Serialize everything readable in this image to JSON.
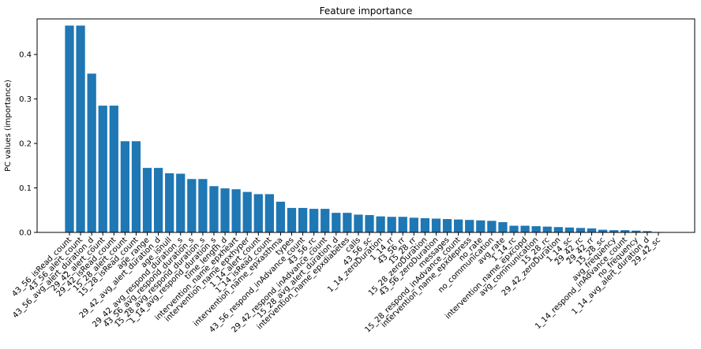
{
  "chart_data": {
    "type": "bar",
    "title": "Feature importance",
    "xlabel": "",
    "ylabel": "PC values (importance)",
    "ylim": [
      0,
      0.48
    ],
    "yticks": [
      0.0,
      0.1,
      0.2,
      0.3,
      0.4
    ],
    "ytick_labels": [
      "0.0",
      "0.1",
      "0.2",
      "0.3",
      "0.4"
    ],
    "grid": false,
    "bar_color": "#1f77b4",
    "categories": [
      "43_56_isRead_count",
      "43_56_alert_count",
      "43_56_avg_alert_duration_d",
      "29_42_alert_count",
      "29_42_isRead_count",
      "15_28_alert_count",
      "15_28_isRead_count",
      "age_range",
      "29_42_avg_alert_duration_d",
      "age_isnull",
      "29_42_avg_respond_duration_s",
      "43_56_avg_respond_duration_s",
      "15_28_avg_respond_duration_s",
      "1_14_avg_respond_duration_s",
      "time_length_d",
      "intervention_name_epxheart",
      "intervention_name_epxhyper",
      "1_14_alert_count",
      "1_14_isRead_count",
      "intervention_name_epxasthma",
      "types",
      "43_56_respond_inAdvance_count",
      "43_56_rc",
      "29_42_respond_inAdvance_count",
      "15_28_avg_alert_duration_d",
      "intervention_name_epxdiabetes",
      "calls",
      "43_56_sc",
      "1_14_zeroDuration",
      "1_14_rr",
      "43_56_rr",
      "15_28_rr",
      "15_28_zeroDuration",
      "43_56_zeroDuration",
      "messages",
      "15_28_respond_inAdvance_count",
      "intervention_name_epxdepress",
      "no_rate",
      "no_communication",
      "avg_rate",
      "1_14_rc",
      "intervention_name_epxcopd",
      "avg_communication",
      "15_28_rc",
      "29_42_zeroDuration",
      "1_14_sc",
      "29_42_rc",
      "29_42_rr",
      "15_28_sc",
      "avg_frequency",
      "1_14_respond_inAdvance_count",
      "no_frequency",
      "1_14_avg_alert_duration_d",
      "29_42_sc"
    ],
    "values": [
      0.465,
      0.465,
      0.357,
      0.285,
      0.285,
      0.205,
      0.205,
      0.145,
      0.145,
      0.133,
      0.132,
      0.12,
      0.12,
      0.104,
      0.099,
      0.097,
      0.091,
      0.086,
      0.086,
      0.069,
      0.055,
      0.055,
      0.053,
      0.053,
      0.044,
      0.044,
      0.04,
      0.039,
      0.036,
      0.035,
      0.035,
      0.033,
      0.032,
      0.031,
      0.03,
      0.029,
      0.028,
      0.027,
      0.026,
      0.023,
      0.015,
      0.015,
      0.014,
      0.013,
      0.012,
      0.011,
      0.01,
      0.009,
      0.006,
      0.005,
      0.005,
      0.004,
      0.003,
      0.001
    ]
  }
}
